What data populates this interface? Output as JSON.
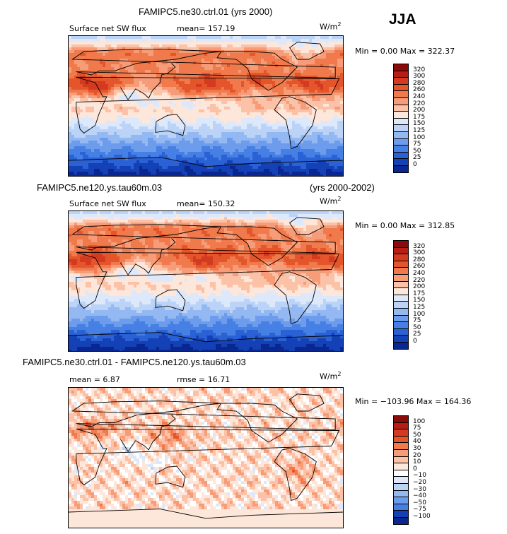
{
  "season": "JJA",
  "chart_data": [
    {
      "type": "heatmap",
      "title": "FAMIPC5.ne30.ctrl.01 (yrs 2000)",
      "variable": "Surface net SW flux",
      "units": "W/m",
      "units_sup": "2",
      "stat": "mean= 157.19",
      "min_max": "Min =   0.00 Max = 322.37",
      "levels": [
        "320",
        "300",
        "280",
        "260",
        "240",
        "220",
        "200",
        "175",
        "150",
        "125",
        "100",
        "75",
        "50",
        "25",
        "0"
      ],
      "colors": [
        "#8b0a0a",
        "#b81d14",
        "#d43a1f",
        "#e5552b",
        "#f07a4c",
        "#f79c78",
        "#fbc2a8",
        "#fde6da",
        "#dde9fb",
        "#bad3f7",
        "#94b9f2",
        "#6d9cec",
        "#4780e4",
        "#2a61d4",
        "#1442b6",
        "#0a2690"
      ],
      "colormap": "warm_cool",
      "mean": 157.19,
      "min": 0.0,
      "max": 322.37
    },
    {
      "type": "heatmap",
      "title": "FAMIPC5.ne120.ys.tau60m.03",
      "title_right": "(yrs 2000-2002)",
      "variable": "Surface net SW flux",
      "units": "W/m",
      "units_sup": "2",
      "stat": "mean= 150.32",
      "min_max": "Min =   0.00 Max = 312.85",
      "levels": [
        "320",
        "300",
        "280",
        "260",
        "240",
        "220",
        "200",
        "175",
        "150",
        "125",
        "100",
        "75",
        "50",
        "25",
        "0"
      ],
      "colors": [
        "#8b0a0a",
        "#b81d14",
        "#d43a1f",
        "#e5552b",
        "#f07a4c",
        "#f79c78",
        "#fbc2a8",
        "#fde6da",
        "#dde9fb",
        "#bad3f7",
        "#94b9f2",
        "#6d9cec",
        "#4780e4",
        "#2a61d4",
        "#1442b6",
        "#0a2690"
      ],
      "colormap": "warm_cool",
      "mean": 150.32,
      "min": 0.0,
      "max": 312.85
    },
    {
      "type": "heatmap",
      "title": "FAMIPC5.ne30.ctrl.01 - FAMIPC5.ne120.ys.tau60m.03",
      "units": "W/m",
      "units_sup": "2",
      "stat": "mean =    6.87",
      "stat2": "rmse =   16.71",
      "min_max": "Min = −103.96 Max = 164.36",
      "levels": [
        "100",
        "75",
        "50",
        "40",
        "30",
        "20",
        "10",
        "0",
        "−10",
        "−20",
        "−30",
        "−40",
        "−50",
        "−75",
        "−100"
      ],
      "colors": [
        "#8b0a0a",
        "#b81d14",
        "#d43a1f",
        "#e5552b",
        "#f07a4c",
        "#f79c78",
        "#fbc2a8",
        "#fde6da",
        "#ffffff",
        "#dde9fb",
        "#bad3f7",
        "#94b9f2",
        "#6d9cec",
        "#4780e4",
        "#1442b6",
        "#0a2690"
      ],
      "colormap": "difference",
      "mean": 6.87,
      "rmse": 16.71,
      "min": -103.96,
      "max": 164.36
    }
  ]
}
